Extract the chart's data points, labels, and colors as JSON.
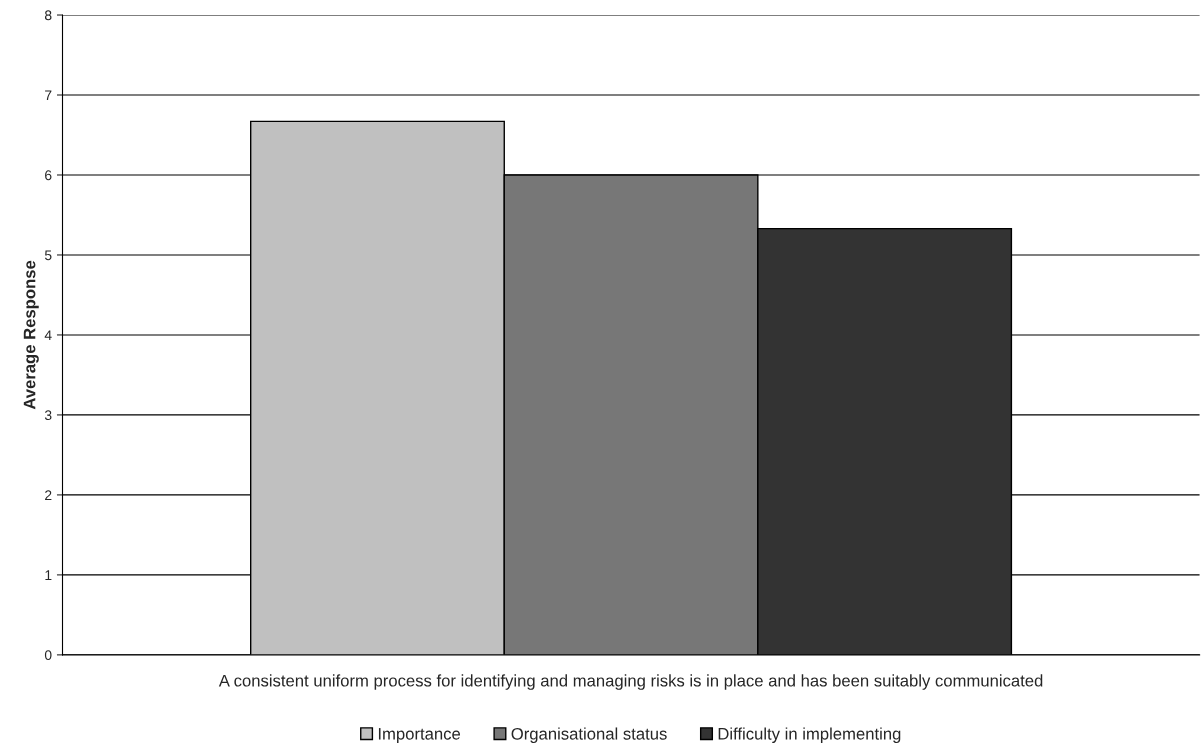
{
  "chart_data": {
    "type": "bar",
    "ylabel": "Average Response",
    "categories": [
      "A consistent uniform process for identifying and managing risks is in place and has been suitably communicated"
    ],
    "series": [
      {
        "name": "Importance",
        "color": "#c0c0c0",
        "values": [
          6.67
        ]
      },
      {
        "name": "Organisational status",
        "color": "#777777",
        "values": [
          6.0
        ]
      },
      {
        "name": "Difficulty in implementing",
        "color": "#333333",
        "values": [
          5.33
        ]
      }
    ],
    "ylim": [
      0,
      8
    ],
    "yticks": [
      0,
      1,
      2,
      3,
      4,
      5,
      6,
      7,
      8
    ],
    "grid": "y",
    "legend": "bottom"
  }
}
